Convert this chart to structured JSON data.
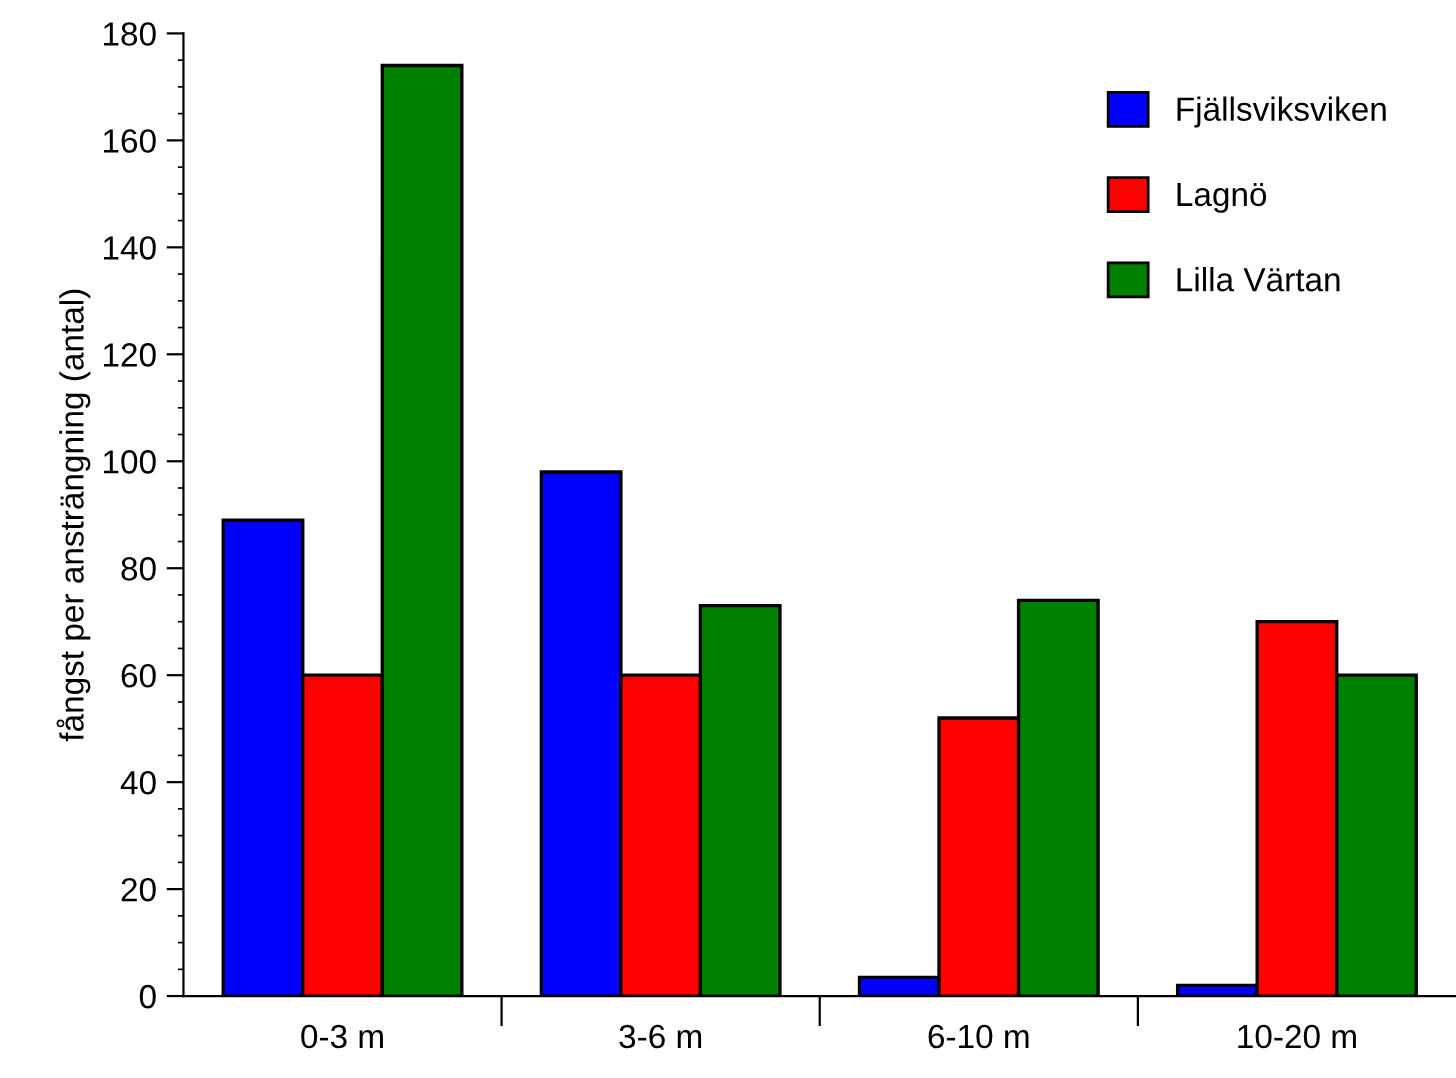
{
  "chart_data": {
    "type": "bar",
    "ylabel": "fångst per ansträngning (antal)",
    "categories": [
      "0-3 m",
      "3-6 m",
      "6-10 m",
      "10-20 m"
    ],
    "series": [
      {
        "name": "Fjällsviksviken",
        "color": "#0000ff",
        "values": [
          89,
          98,
          3.5,
          2
        ]
      },
      {
        "name": "Lagnö",
        "color": "#ff0000",
        "values": [
          60,
          60,
          52,
          70
        ]
      },
      {
        "name": "Lilla Värtan",
        "color": "#008000",
        "values": [
          174,
          73,
          74,
          60
        ]
      }
    ],
    "ylim": [
      0,
      180
    ],
    "yticks": [
      0,
      20,
      40,
      60,
      80,
      100,
      120,
      140,
      160,
      180
    ],
    "grid": false,
    "legend": "top right"
  }
}
